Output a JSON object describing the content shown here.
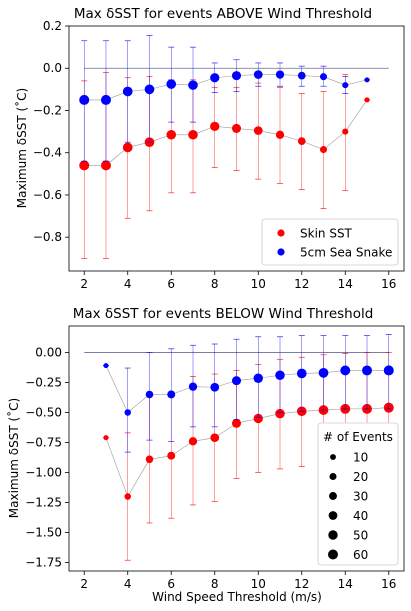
{
  "chart_data": [
    {
      "type": "scatter",
      "title": "Max δSST for events ABOVE Wind Threshold",
      "xlabel": "",
      "ylabel": "Maximum δSST ($^\\circ$C)",
      "ylabel_display": "Maximum δSST (˚C)",
      "xlim": [
        1.3,
        16.7
      ],
      "ylim": [
        -0.96,
        0.2
      ],
      "xticks": [
        2,
        4,
        6,
        8,
        10,
        12,
        14,
        16
      ],
      "yticks": [
        0.2,
        0.0,
        -0.2,
        -0.4,
        -0.6,
        -0.8
      ],
      "ytick_labels": [
        "0.2",
        "0.0",
        "−0.2",
        "−0.4",
        "−0.6",
        "−0.8"
      ],
      "zero_line": 0.0,
      "legend_location": "lower right",
      "legend": [
        "Skin SST",
        "5cm Sea Snake"
      ],
      "series": [
        {
          "name": "Skin SST",
          "color": "#ff0000",
          "x": [
            2,
            3,
            4,
            5,
            6,
            7,
            8,
            9,
            10,
            11,
            12,
            13,
            14,
            15
          ],
          "y": [
            -0.46,
            -0.46,
            -0.375,
            -0.35,
            -0.315,
            -0.315,
            -0.275,
            -0.285,
            -0.295,
            -0.315,
            -0.345,
            -0.385,
            -0.3,
            -0.15
          ],
          "err_low": [
            -0.9,
            -0.9,
            -0.71,
            -0.675,
            -0.59,
            -0.59,
            -0.47,
            -0.485,
            -0.525,
            -0.545,
            -0.575,
            -0.665,
            -0.58,
            -0.15
          ],
          "err_high": [
            -0.06,
            -0.02,
            -0.045,
            -0.04,
            -0.055,
            -0.055,
            -0.09,
            -0.09,
            -0.07,
            -0.09,
            -0.12,
            -0.11,
            -0.03,
            -0.15
          ],
          "sizes": [
            60,
            60,
            55,
            55,
            53,
            53,
            48,
            45,
            40,
            34,
            27,
            20,
            12,
            5
          ]
        },
        {
          "name": "5cm Sea Snake",
          "color": "#0000ff",
          "x": [
            2,
            3,
            4,
            5,
            6,
            7,
            8,
            9,
            10,
            11,
            12,
            13,
            14,
            15
          ],
          "y": [
            -0.15,
            -0.15,
            -0.11,
            -0.1,
            -0.075,
            -0.08,
            -0.045,
            -0.035,
            -0.03,
            -0.03,
            -0.035,
            -0.04,
            -0.08,
            -0.055
          ],
          "err_low": [
            -0.44,
            -0.44,
            -0.35,
            -0.35,
            -0.255,
            -0.255,
            -0.115,
            -0.11,
            -0.085,
            -0.085,
            -0.085,
            -0.085,
            -0.12,
            -0.055
          ],
          "err_high": [
            0.13,
            0.13,
            0.13,
            0.155,
            0.1,
            0.1,
            0.025,
            0.04,
            0.025,
            0.025,
            0.01,
            0.01,
            -0.04,
            -0.055
          ],
          "sizes": [
            60,
            60,
            55,
            55,
            53,
            53,
            48,
            45,
            40,
            34,
            27,
            20,
            12,
            5
          ]
        }
      ]
    },
    {
      "type": "scatter",
      "title": "Max δSST for events BELOW Wind Threshold",
      "xlabel": "Wind Speed Threshold (m/s)",
      "ylabel": "Maximum δSST ($^\\circ$C)",
      "ylabel_display": "Maximum δSST (˚C)",
      "xlim": [
        1.3,
        16.7
      ],
      "ylim": [
        -1.82,
        0.22
      ],
      "xticks": [
        2,
        4,
        6,
        8,
        10,
        12,
        14,
        16
      ],
      "yticks": [
        0.0,
        -0.25,
        -0.5,
        -0.75,
        -1.0,
        -1.25,
        -1.5,
        -1.75
      ],
      "ytick_labels": [
        "0.00",
        "−0.25",
        "−0.50",
        "−0.75",
        "−1.00",
        "−1.25",
        "−1.50",
        "−1.75"
      ],
      "zero_line": 0.0,
      "legend_title": "# of Events",
      "legend_location": "lower right",
      "size_legend": [
        {
          "label": "10",
          "size": 10
        },
        {
          "label": "20",
          "size": 20
        },
        {
          "label": "30",
          "size": 30
        },
        {
          "label": "40",
          "size": 40
        },
        {
          "label": "50",
          "size": 50
        },
        {
          "label": "60",
          "size": 60
        }
      ],
      "series": [
        {
          "name": "Skin SST",
          "color": "#ff0000",
          "x": [
            3,
            4,
            5,
            6,
            7,
            8,
            9,
            10,
            11,
            12,
            13,
            14,
            15,
            16
          ],
          "y": [
            -0.71,
            -1.2,
            -0.89,
            -0.86,
            -0.74,
            -0.71,
            -0.59,
            -0.55,
            -0.51,
            -0.49,
            -0.48,
            -0.47,
            -0.47,
            -0.46
          ],
          "err_low": [
            -0.71,
            -1.73,
            -1.42,
            -1.38,
            -1.27,
            -1.24,
            -1.05,
            -1.0,
            -0.97,
            -0.95,
            -0.95,
            -0.94,
            -0.93,
            -0.93
          ],
          "err_high": [
            -0.71,
            -0.67,
            -0.35,
            -0.33,
            -0.2,
            -0.18,
            -0.15,
            -0.1,
            -0.06,
            -0.04,
            -0.02,
            -0.01,
            0.0,
            0.0
          ],
          "sizes": [
            5,
            15,
            25,
            30,
            35,
            40,
            45,
            50,
            52,
            54,
            56,
            58,
            59,
            60
          ]
        },
        {
          "name": "5cm Sea Snake",
          "color": "#0000ff",
          "x": [
            3,
            4,
            5,
            6,
            7,
            8,
            9,
            10,
            11,
            12,
            13,
            14,
            15,
            16
          ],
          "y": [
            -0.11,
            -0.5,
            -0.35,
            -0.35,
            -0.285,
            -0.29,
            -0.235,
            -0.215,
            -0.19,
            -0.175,
            -0.17,
            -0.15,
            -0.15,
            -0.15
          ],
          "err_low": [
            -0.11,
            -0.83,
            -0.73,
            -0.74,
            -0.62,
            -0.62,
            -0.56,
            -0.54,
            -0.5,
            -0.49,
            -0.48,
            -0.47,
            -0.47,
            -0.47
          ],
          "err_high": [
            -0.11,
            -0.13,
            0.0,
            0.03,
            0.06,
            0.07,
            0.11,
            0.13,
            0.13,
            0.14,
            0.14,
            0.14,
            0.14,
            0.15
          ],
          "sizes": [
            5,
            15,
            25,
            30,
            35,
            40,
            45,
            50,
            52,
            54,
            56,
            58,
            59,
            60
          ]
        }
      ]
    }
  ]
}
